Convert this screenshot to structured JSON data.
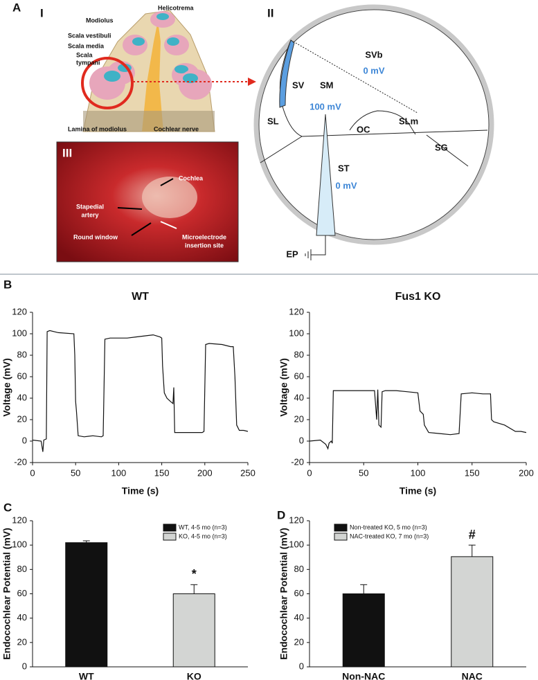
{
  "panel_a": {
    "label": "A",
    "subpanels": [
      "I",
      "II",
      "III"
    ],
    "cochlea_labels": [
      "Helicotrema",
      "Modiolus",
      "Scala vestibuli",
      "Scala media",
      "Scala",
      "tympani",
      "Lamina of modiolus",
      "Cochlear nerve"
    ],
    "diagram_labels": [
      "SVb",
      "0 mV",
      "SV",
      "SM",
      "100 mV",
      "SL",
      "OC",
      "SLm",
      "SG",
      "ST",
      "0 mV",
      "EP"
    ],
    "photo_labels": [
      "Cochlea",
      "Stapedial",
      "artery",
      "Round window",
      "Microelectrode",
      "insertion site"
    ]
  },
  "panel_labels": [
    "B",
    "C",
    "D"
  ],
  "chart_data": [
    {
      "type": "line",
      "title": "WT",
      "xlabel": "Time (s)",
      "ylabel": "Voltage (mV)",
      "color": "#111111",
      "x": [
        0,
        10,
        12,
        13,
        16,
        17,
        20,
        30,
        48,
        49,
        50,
        51,
        53,
        60,
        70,
        80,
        82,
        84,
        90,
        110,
        120,
        130,
        140,
        148,
        150,
        151,
        153,
        156,
        160,
        163,
        164,
        165,
        170,
        190,
        197,
        199,
        201,
        205,
        220,
        230,
        233,
        235,
        237,
        240,
        245,
        250
      ],
      "values": [
        1,
        0,
        -10,
        1,
        2,
        102,
        103,
        101,
        100,
        80,
        37,
        28,
        5,
        4,
        5,
        4,
        5,
        95,
        96,
        96,
        97,
        98,
        99,
        97,
        96,
        70,
        45,
        40,
        37,
        35,
        50,
        8,
        8,
        8,
        8,
        9,
        90,
        91,
        90,
        88,
        88,
        60,
        15,
        10,
        10,
        9
      ],
      "xlim": [
        0,
        250
      ],
      "xticks": [
        0,
        50,
        100,
        150,
        200,
        250
      ],
      "ylim": [
        -20,
        120
      ],
      "yticks": [
        -20,
        0,
        20,
        40,
        60,
        80,
        100,
        120
      ]
    },
    {
      "type": "line",
      "title": "Fus1 KO",
      "xlabel": "Time (s)",
      "ylabel": "Voltage (mV)",
      "color": "#111111",
      "x": [
        0,
        10,
        15,
        17,
        18,
        20,
        21,
        22,
        30,
        40,
        50,
        60,
        62,
        63,
        64,
        66,
        67,
        70,
        80,
        90,
        100,
        102,
        105,
        106,
        110,
        120,
        130,
        138,
        140,
        150,
        160,
        167,
        168,
        170,
        180,
        190,
        195,
        200
      ],
      "values": [
        0,
        1,
        -3,
        -7,
        -2,
        0,
        -2,
        47,
        47,
        47,
        47,
        47,
        20,
        48,
        15,
        13,
        46,
        47,
        47,
        46,
        45,
        28,
        25,
        15,
        8,
        7,
        6,
        7,
        44,
        45,
        44,
        44,
        20,
        18,
        15,
        9,
        9,
        8
      ],
      "xlim": [
        0,
        200
      ],
      "xticks": [
        0,
        50,
        100,
        150,
        200
      ],
      "ylim": [
        -20,
        120
      ],
      "yticks": [
        -20,
        0,
        20,
        40,
        60,
        80,
        100,
        120
      ]
    },
    {
      "type": "bar",
      "ylabel": "Endocochlear Potential (mV)",
      "categories": [
        "WT",
        "KO"
      ],
      "values": [
        102,
        60
      ],
      "errors": [
        1.5,
        7.5
      ],
      "colors": [
        "#111111",
        "#d3d5d3"
      ],
      "legend": [
        "WT, 4-5 mo (n=3)",
        "KO, 4-5 mo (n=3)"
      ],
      "legend_position": "upper right",
      "annotations": [
        {
          "text": "*",
          "index": 1
        }
      ],
      "ylim": [
        0,
        120
      ],
      "yticks": [
        0,
        20,
        40,
        60,
        80,
        100,
        120
      ]
    },
    {
      "type": "bar",
      "ylabel": "Endocochlear Potential (mV)",
      "categories": [
        "Non-NAC",
        "NAC"
      ],
      "values": [
        60,
        90.5
      ],
      "errors": [
        7.5,
        9.5
      ],
      "colors": [
        "#111111",
        "#d3d5d3"
      ],
      "legend": [
        "Non-treated KO, 5 mo (n=3)",
        "NAC-treated KO, 7 mo (n=3)"
      ],
      "legend_position": "upper left",
      "annotations": [
        {
          "text": "#",
          "index": 1
        }
      ],
      "ylim": [
        0,
        120
      ],
      "yticks": [
        0,
        20,
        40,
        60,
        80,
        100,
        120
      ]
    }
  ]
}
